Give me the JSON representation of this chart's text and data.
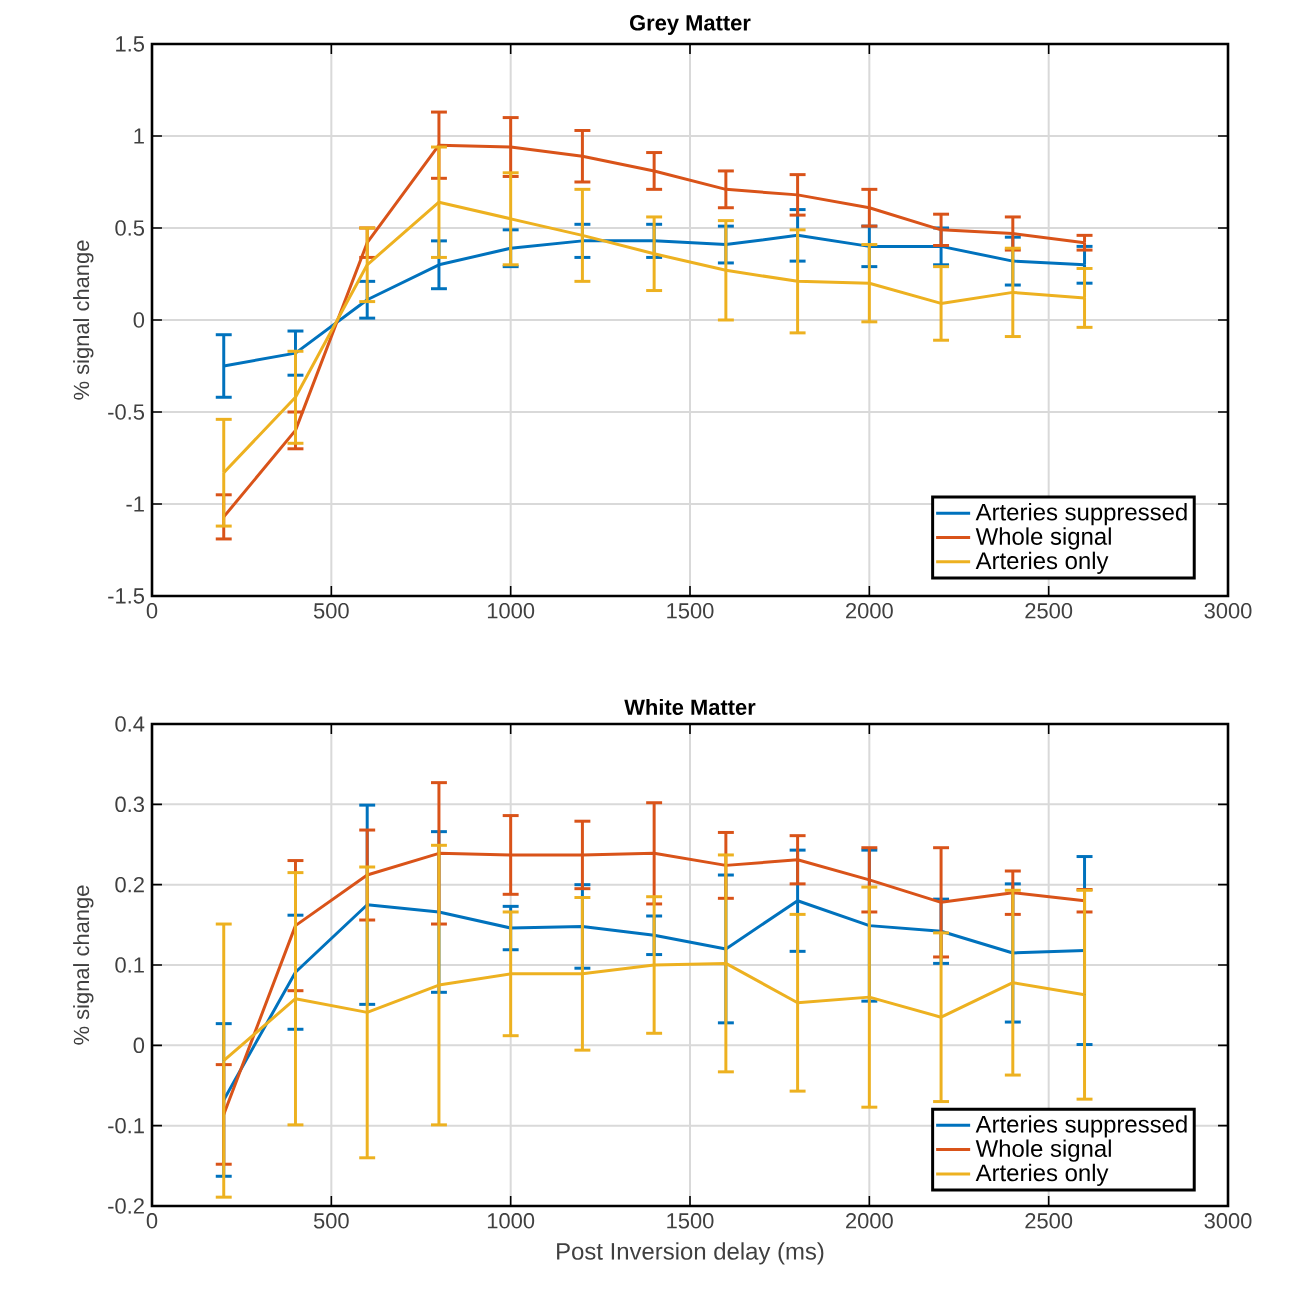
{
  "chart_data": [
    {
      "type": "line",
      "title": "Grey Matter",
      "ylabel": "% signal change",
      "x": [
        200,
        400,
        600,
        800,
        1000,
        1200,
        1400,
        1600,
        1800,
        2000,
        2200,
        2400,
        2600
      ],
      "xlim": [
        0,
        3000
      ],
      "xticks": [
        0,
        500,
        1000,
        1500,
        2000,
        2500,
        3000
      ],
      "ylim": [
        -1.5,
        1.5
      ],
      "yticks": [
        -1.5,
        -1,
        -0.5,
        0,
        0.5,
        1,
        1.5
      ],
      "grid": true,
      "legend": "bottom right",
      "marker": "none",
      "line_style": "solid",
      "series": [
        {
          "name": "Arteries suppressed",
          "color": "#0072bd",
          "values": [
            -0.25,
            -0.18,
            0.11,
            0.3,
            0.39,
            0.43,
            0.43,
            0.41,
            0.46,
            0.4,
            0.4,
            0.32,
            0.3
          ],
          "errors": [
            0.17,
            0.12,
            0.1,
            0.13,
            0.1,
            0.09,
            0.09,
            0.1,
            0.14,
            0.11,
            0.1,
            0.13,
            0.1
          ]
        },
        {
          "name": "Whole signal",
          "color": "#d95319",
          "values": [
            -1.07,
            -0.6,
            0.42,
            0.95,
            0.94,
            0.89,
            0.81,
            0.71,
            0.68,
            0.61,
            0.49,
            0.47,
            0.42
          ],
          "errors": [
            0.12,
            0.1,
            0.08,
            0.18,
            0.16,
            0.14,
            0.1,
            0.1,
            0.11,
            0.1,
            0.085,
            0.09,
            0.04
          ]
        },
        {
          "name": "Arteries only",
          "color": "#edb120",
          "values": [
            -0.83,
            -0.42,
            0.3,
            0.64,
            0.55,
            0.46,
            0.36,
            0.27,
            0.21,
            0.2,
            0.09,
            0.15,
            0.12
          ],
          "errors": [
            0.29,
            0.25,
            0.2,
            0.3,
            0.25,
            0.25,
            0.2,
            0.27,
            0.28,
            0.21,
            0.2,
            0.24,
            0.16
          ]
        }
      ]
    },
    {
      "type": "line",
      "title": "White Matter",
      "ylabel": "% signal change",
      "xlabel": "Post Inversion delay (ms)",
      "x": [
        200,
        400,
        600,
        800,
        1000,
        1200,
        1400,
        1600,
        1800,
        2000,
        2200,
        2400,
        2600
      ],
      "xlim": [
        0,
        3000
      ],
      "xticks": [
        0,
        500,
        1000,
        1500,
        2000,
        2500,
        3000
      ],
      "ylim": [
        -0.2,
        0.4
      ],
      "yticks": [
        -0.2,
        -0.1,
        0,
        0.1,
        0.2,
        0.3,
        0.4
      ],
      "grid": true,
      "legend": "bottom right",
      "marker": "none",
      "line_style": "solid",
      "series": [
        {
          "name": "Arteries suppressed",
          "color": "#0072bd",
          "values": [
            -0.068,
            0.091,
            0.175,
            0.166,
            0.146,
            0.148,
            0.137,
            0.12,
            0.18,
            0.149,
            0.142,
            0.115,
            0.118
          ],
          "errors": [
            0.095,
            0.071,
            0.124,
            0.1,
            0.027,
            0.052,
            0.024,
            0.092,
            0.063,
            0.094,
            0.04,
            0.086,
            0.117
          ]
        },
        {
          "name": "Whole signal",
          "color": "#d95319",
          "values": [
            -0.086,
            0.149,
            0.212,
            0.239,
            0.237,
            0.237,
            0.239,
            0.224,
            0.231,
            0.206,
            0.178,
            0.19,
            0.18
          ],
          "errors": [
            0.062,
            0.081,
            0.056,
            0.088,
            0.049,
            0.042,
            0.063,
            0.041,
            0.03,
            0.04,
            0.068,
            0.027,
            0.014
          ]
        },
        {
          "name": "Arteries only",
          "color": "#edb120",
          "values": [
            -0.019,
            0.058,
            0.041,
            0.075,
            0.089,
            0.089,
            0.1,
            0.102,
            0.053,
            0.06,
            0.035,
            0.078,
            0.063
          ],
          "errors": [
            0.17,
            0.157,
            0.181,
            0.174,
            0.077,
            0.095,
            0.085,
            0.135,
            0.11,
            0.137,
            0.105,
            0.115,
            0.13
          ]
        }
      ]
    }
  ]
}
